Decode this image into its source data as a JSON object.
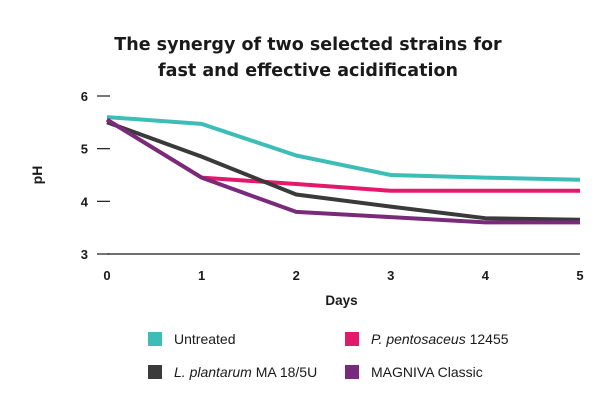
{
  "chart_data": {
    "type": "line",
    "title_lines": [
      "The synergy of two selected strains for",
      "fast and effective acidification"
    ],
    "xlabel": "Days",
    "ylabel": "pH",
    "x": [
      0,
      1,
      2,
      3,
      4,
      5
    ],
    "xlim": [
      0,
      5
    ],
    "ylim": [
      3,
      6
    ],
    "yticks": [
      3,
      4,
      5,
      6
    ],
    "grid": false,
    "legend_position": "bottom",
    "series": [
      {
        "name": "Untreated",
        "color": "#3dbdb5",
        "values": [
          5.6,
          5.47,
          4.87,
          4.5,
          4.45,
          4.41
        ]
      },
      {
        "name": "P. pentosaceus 12455",
        "name_italic": "P. pentosaceus",
        "name_rest": " 12455",
        "color": "#e3196b",
        "values": [
          5.55,
          4.45,
          4.33,
          4.2,
          4.2,
          4.2
        ]
      },
      {
        "name": "L. plantarum MA 18/5U",
        "name_italic": "L. plantarum",
        "name_rest": " MA 18/5U",
        "color": "#3a3a3a",
        "values": [
          5.5,
          4.85,
          4.13,
          3.9,
          3.68,
          3.65
        ]
      },
      {
        "name": "MAGNIVA Classic",
        "color": "#7a2a7a",
        "values": [
          5.55,
          4.45,
          3.8,
          3.7,
          3.6,
          3.6
        ]
      }
    ]
  }
}
